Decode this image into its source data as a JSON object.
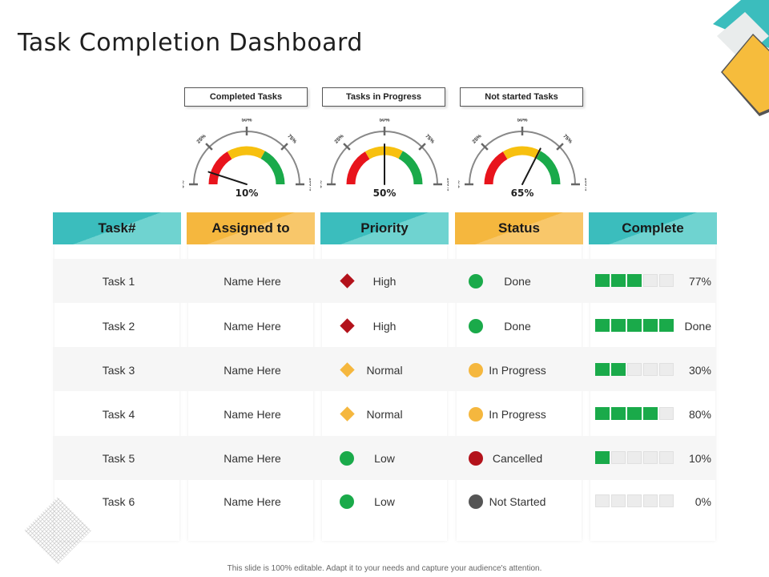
{
  "title": "Task Completion Dashboard",
  "gauges": [
    {
      "label": "Completed Tasks",
      "value": 10,
      "value_text": "10%"
    },
    {
      "label": "Tasks in Progress",
      "value": 50,
      "value_text": "50%"
    },
    {
      "label": "Not started Tasks",
      "value": 65,
      "value_text": "65%"
    }
  ],
  "gauge_ticks": [
    "0%",
    "25%",
    "50%",
    "75%",
    "100%"
  ],
  "columns": [
    "Task#",
    "Assigned to",
    "Priority",
    "Status",
    "Complete"
  ],
  "rows": [
    {
      "task": "Task 1",
      "assigned": "Name Here",
      "priority": "High",
      "status": "Done",
      "complete_text": "77%",
      "complete_segments": 3
    },
    {
      "task": "Task 2",
      "assigned": "Name Here",
      "priority": "High",
      "status": "Done",
      "complete_text": "Done",
      "complete_segments": 5
    },
    {
      "task": "Task 3",
      "assigned": "Name Here",
      "priority": "Normal",
      "status": "In Progress",
      "complete_text": "30%",
      "complete_segments": 2
    },
    {
      "task": "Task 4",
      "assigned": "Name Here",
      "priority": "Normal",
      "status": "In Progress",
      "complete_text": "80%",
      "complete_segments": 4
    },
    {
      "task": "Task 5",
      "assigned": "Name Here",
      "priority": "Low",
      "status": "Cancelled",
      "complete_text": "10%",
      "complete_segments": 1
    },
    {
      "task": "Task 6",
      "assigned": "Name Here",
      "priority": "Low",
      "status": "Not Started",
      "complete_text": "0%",
      "complete_segments": 0
    }
  ],
  "priority_icons": {
    "High": "red-diamond-icon",
    "Normal": "yellow-diamond-icon",
    "Low": "green-dot-icon"
  },
  "status_icons": {
    "Done": "green-dot-icon",
    "In Progress": "yellow-dot-icon",
    "Cancelled": "red-dot-icon",
    "Not Started": "gray-dot-icon"
  },
  "colors": {
    "teal": "#3bbdbd",
    "yellow": "#f5b73e",
    "green": "#1aaa4a",
    "red": "#b3121b",
    "amber": "#f5b73e",
    "gray": "#555555",
    "gauge_red": "#e8141c",
    "gauge_yellow": "#f7c00f",
    "gauge_green": "#1aaa4a"
  },
  "footer": "This slide is 100% editable. Adapt it to your needs and capture your audience's attention."
}
